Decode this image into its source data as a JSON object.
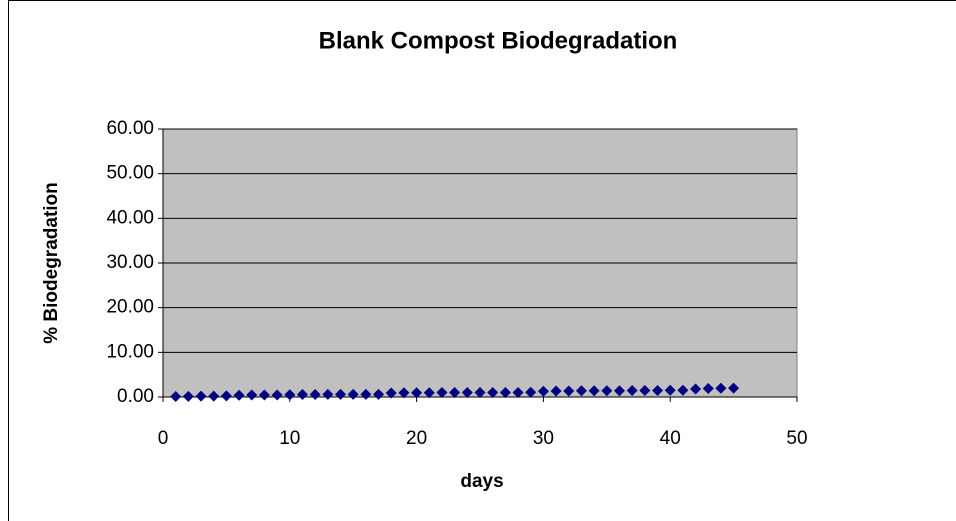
{
  "chart_data": {
    "type": "scatter",
    "title": "Blank Compost  Biodegradation",
    "x_label": "days",
    "y_label": "% Biodegradation",
    "xlim": [
      0,
      50
    ],
    "xticks": [
      0,
      10,
      20,
      30,
      40,
      50
    ],
    "ylim": [
      0,
      60
    ],
    "yticks": [
      {
        "value": 0,
        "label": "0.00"
      },
      {
        "value": 10,
        "label": "10.00"
      },
      {
        "value": 20,
        "label": "20.00"
      },
      {
        "value": 30,
        "label": "30.00"
      },
      {
        "value": 40,
        "label": "40.00"
      },
      {
        "value": 50,
        "label": "50.00"
      },
      {
        "value": 60,
        "label": "60.00"
      }
    ],
    "grid": true,
    "background": "#c0c0c0",
    "series": [
      {
        "color": "#000080",
        "x": [
          1,
          2,
          3,
          4,
          5,
          6,
          7,
          8,
          9,
          10,
          11,
          12,
          13,
          14,
          15,
          16,
          17,
          18,
          19,
          20,
          21,
          22,
          23,
          24,
          25,
          26,
          27,
          28,
          29,
          30,
          31,
          32,
          33,
          34,
          35,
          36,
          37,
          38,
          39,
          40,
          41,
          42,
          43,
          44,
          45
        ],
        "values": [
          0.1,
          0.15,
          0.2,
          0.2,
          0.25,
          0.4,
          0.45,
          0.45,
          0.45,
          0.5,
          0.55,
          0.55,
          0.6,
          0.6,
          0.6,
          0.6,
          0.6,
          0.9,
          0.95,
          0.95,
          0.95,
          1.0,
          1.0,
          1.0,
          1.0,
          1.0,
          1.0,
          1.0,
          1.05,
          1.3,
          1.35,
          1.35,
          1.4,
          1.4,
          1.4,
          1.4,
          1.45,
          1.45,
          1.45,
          1.5,
          1.5,
          1.8,
          1.9,
          1.95,
          2.0
        ]
      }
    ]
  }
}
